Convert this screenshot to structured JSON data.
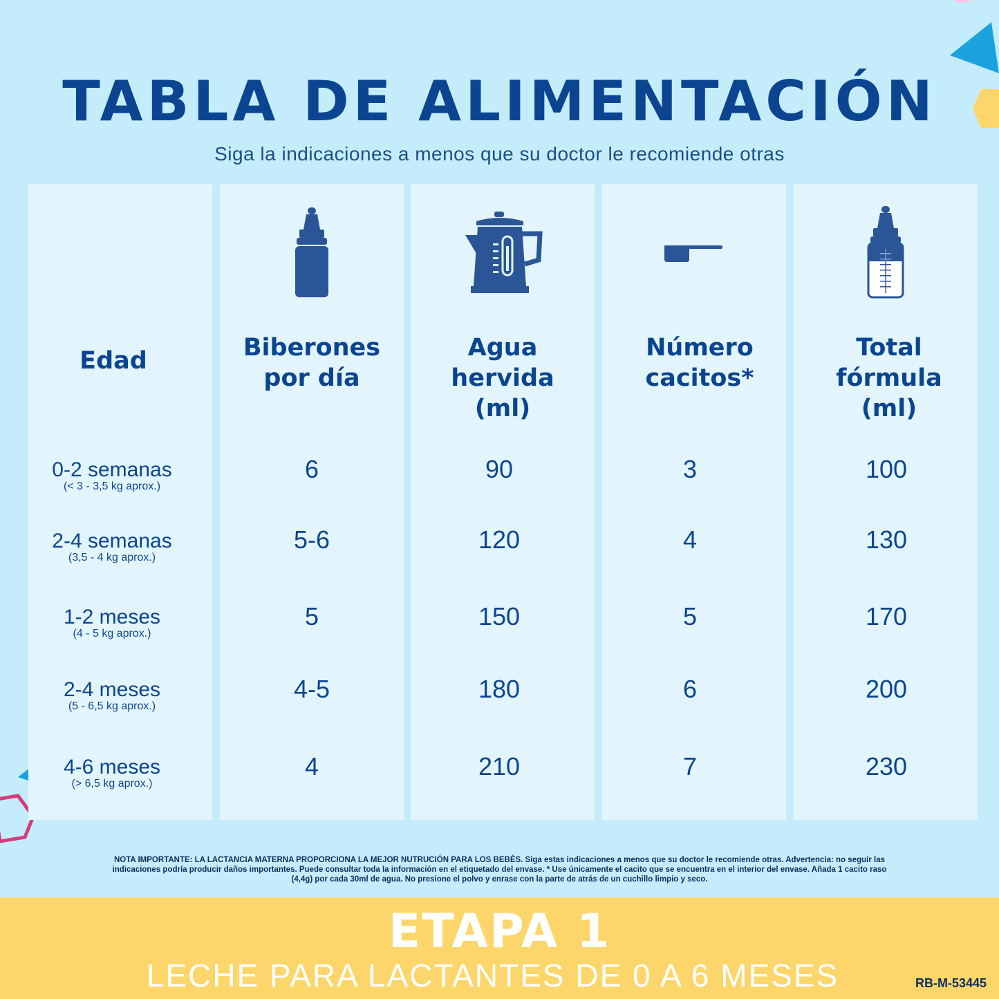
{
  "header": {
    "title": "TABLA DE ALIMENTACIÓN",
    "subtitle": "Siga la indicaciones a menos que su doctor le recomiende otras"
  },
  "table": {
    "columns": [
      {
        "label_lines": [
          "Edad"
        ],
        "icon": null
      },
      {
        "label_lines": [
          "Biberones",
          "por día"
        ],
        "icon": "baby-bottle-icon"
      },
      {
        "label_lines": [
          "Agua",
          "hervida",
          "(ml)"
        ],
        "icon": "kettle-icon"
      },
      {
        "label_lines": [
          "Número",
          "cacitos*"
        ],
        "icon": "scoop-icon"
      },
      {
        "label_lines": [
          "Total",
          "fórmula",
          "(ml)"
        ],
        "icon": "measuring-bottle-icon"
      }
    ],
    "rows": [
      {
        "age": "0-2 semanas",
        "weight": "(< 3 - 3,5 kg aprox.)",
        "bottles": "6",
        "water": "90",
        "scoops": "3",
        "total": "100"
      },
      {
        "age": "2-4 semanas",
        "weight": "(3,5 - 4 kg aprox.)",
        "bottles": "5-6",
        "water": "120",
        "scoops": "4",
        "total": "130"
      },
      {
        "age": "1-2 meses",
        "weight": "(4 - 5 kg aprox.)",
        "bottles": "5",
        "water": "150",
        "scoops": "5",
        "total": "170"
      },
      {
        "age": "2-4 meses",
        "weight": "(5 - 6,5 kg aprox.)",
        "bottles": "4-5",
        "water": "180",
        "scoops": "6",
        "total": "200"
      },
      {
        "age": "4-6 meses",
        "weight": "(> 6,5 kg aprox.)",
        "bottles": "4",
        "water": "210",
        "scoops": "7",
        "total": "230"
      }
    ]
  },
  "note": {
    "line1": "NOTA IMPORTANTE: LA LACTANCIA MATERNA PROPORCIONA LA MEJOR NUTRUCIÓN PARA LOS BEBÉS. Siga estas indicaciones a menos que su doctor le recomiende otras. Advertencia: no seguir las",
    "line2": "indicaciones podría producir daños importantes. Puede consultar toda la información en el etiquetado del envase. * Use únicamente el cacito que se encuentra en el interior del envase. Añada 1 cacito raso",
    "line3": "(4,4g) por cada 30ml de agua. No presione el polvo y enrase con la parte de atrás de un cuchillo limpio y seco."
  },
  "footer": {
    "stage": "ETAPA 1",
    "tagline": "LECHE PARA LACTANTES DE 0 A 6 MESES",
    "code": "RB-M-53445"
  },
  "colors": {
    "background": "#c5ecfb",
    "column": "#e3f5fc",
    "text": "#0b4591",
    "footer": "#fcd66b",
    "icon": "#2a5597"
  }
}
